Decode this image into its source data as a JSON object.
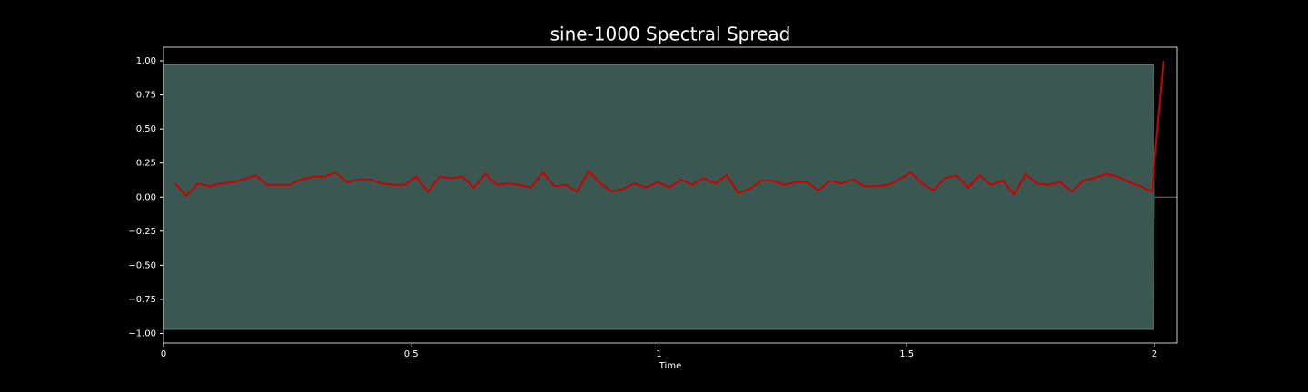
{
  "chart_data": {
    "type": "line",
    "title": "sine-1000 Spectral Spread",
    "xlabel": "Time",
    "xlim": [
      0,
      2.046
    ],
    "ylim": [
      -1.07,
      1.1
    ],
    "xticks": [
      0,
      0.5,
      1,
      1.5,
      2
    ],
    "yticks": [
      {
        "value": -1,
        "label": "−1.00"
      },
      {
        "value": -0.75,
        "label": "−0.75"
      },
      {
        "value": -0.5,
        "label": "−0.50"
      },
      {
        "value": -0.25,
        "label": "−0.25"
      },
      {
        "value": 0,
        "label": "0.00"
      },
      {
        "value": 0.25,
        "label": "0.25"
      },
      {
        "value": 0.5,
        "label": "0.50"
      },
      {
        "value": 0.75,
        "label": "0.75"
      },
      {
        "value": 1,
        "label": "1.00"
      }
    ],
    "waveform": {
      "color": "#3b5752",
      "x": [
        0,
        1.998,
        2.0,
        2.046
      ],
      "upper": [
        0.97,
        0.97,
        0,
        0
      ],
      "lower": [
        -0.97,
        -0.97,
        0,
        0
      ]
    },
    "series": [
      {
        "color": "#cc0000",
        "x": [
          0.023,
          0.046,
          0.07,
          0.093,
          0.116,
          0.139,
          0.162,
          0.186,
          0.209,
          0.232,
          0.255,
          0.278,
          0.302,
          0.325,
          0.348,
          0.371,
          0.394,
          0.418,
          0.441,
          0.464,
          0.487,
          0.51,
          0.534,
          0.557,
          0.58,
          0.603,
          0.626,
          0.65,
          0.673,
          0.696,
          0.719,
          0.742,
          0.766,
          0.789,
          0.812,
          0.835,
          0.858,
          0.882,
          0.905,
          0.928,
          0.951,
          0.974,
          0.998,
          1.021,
          1.044,
          1.067,
          1.09,
          1.114,
          1.137,
          1.16,
          1.183,
          1.206,
          1.23,
          1.253,
          1.276,
          1.299,
          1.322,
          1.346,
          1.369,
          1.392,
          1.415,
          1.438,
          1.462,
          1.485,
          1.508,
          1.531,
          1.554,
          1.578,
          1.601,
          1.624,
          1.647,
          1.67,
          1.694,
          1.717,
          1.74,
          1.763,
          1.786,
          1.81,
          1.833,
          1.856,
          1.879,
          1.902,
          1.926,
          1.949,
          1.972,
          1.995,
          2.018
        ],
        "values": [
          0.1,
          0.01,
          0.1,
          0.08,
          0.1,
          0.11,
          0.13,
          0.16,
          0.09,
          0.09,
          0.09,
          0.13,
          0.15,
          0.15,
          0.18,
          0.11,
          0.13,
          0.13,
          0.1,
          0.09,
          0.09,
          0.15,
          0.04,
          0.15,
          0.14,
          0.15,
          0.07,
          0.17,
          0.09,
          0.1,
          0.09,
          0.07,
          0.18,
          0.08,
          0.09,
          0.04,
          0.19,
          0.1,
          0.04,
          0.06,
          0.1,
          0.07,
          0.11,
          0.07,
          0.13,
          0.09,
          0.14,
          0.1,
          0.16,
          0.03,
          0.06,
          0.12,
          0.12,
          0.09,
          0.11,
          0.11,
          0.05,
          0.12,
          0.1,
          0.13,
          0.08,
          0.08,
          0.09,
          0.13,
          0.18,
          0.1,
          0.05,
          0.14,
          0.16,
          0.07,
          0.16,
          0.09,
          0.12,
          0.02,
          0.17,
          0.1,
          0.09,
          0.11,
          0.04,
          0.12,
          0.14,
          0.17,
          0.15,
          0.11,
          0.08,
          0.04,
          1.0
        ]
      }
    ]
  }
}
